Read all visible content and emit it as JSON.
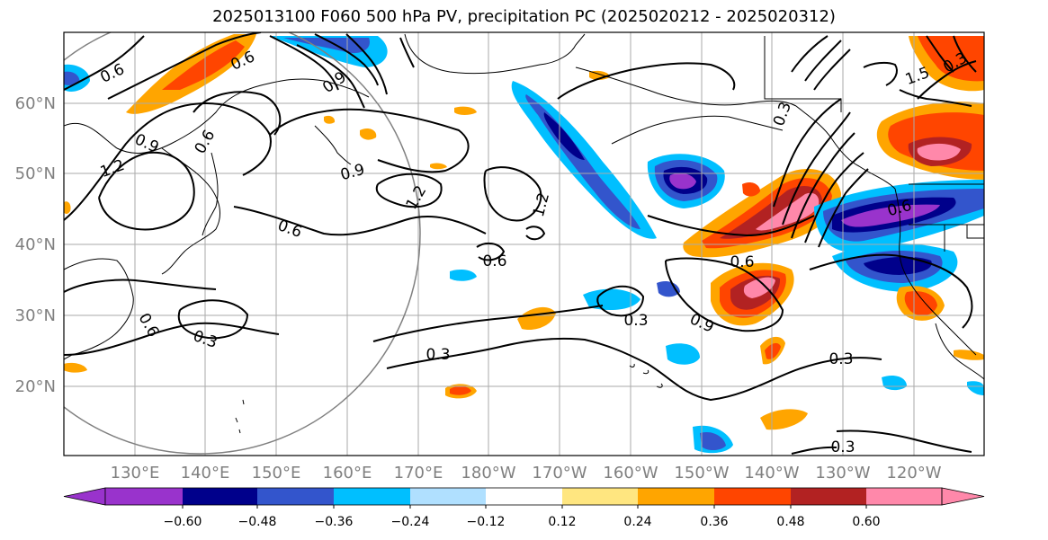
{
  "title": "2025013100 F060 500 hPa PV, precipitation PC (2025020212 - 2025020312)",
  "map": {
    "lat_labels": [
      "60°N",
      "50°N",
      "40°N",
      "30°N",
      "20°N"
    ],
    "lon_labels": [
      "130°E",
      "140°E",
      "150°E",
      "160°E",
      "170°E",
      "180°W",
      "170°W",
      "160°W",
      "150°W",
      "140°W",
      "130°W",
      "120°W"
    ],
    "contour_labels": [
      "0.6",
      "1.2",
      "0.9",
      "0.6",
      "1.2",
      "0.9",
      "1.2",
      "0.6",
      "0.6",
      "0.6",
      "0.6",
      "0.3",
      "0.6",
      "0.9",
      "0.3",
      "0.3",
      "0.3",
      "0.3",
      "0.3",
      "1.5",
      "0.6",
      "0.3",
      "0.9"
    ]
  },
  "colorbar": {
    "ticks": [
      "−0.60",
      "−0.48",
      "−0.36",
      "−0.24",
      "−0.12",
      "0.12",
      "0.24",
      "0.36",
      "0.48",
      "0.60"
    ],
    "colors": [
      "#9933cc",
      "#00008b",
      "#3355cc",
      "#00bfff",
      "#b0e0ff",
      "#ffffff",
      "#ffe680",
      "#ffa500",
      "#ff4500",
      "#b22222",
      "#ff88aa",
      "#ffffff"
    ]
  }
}
